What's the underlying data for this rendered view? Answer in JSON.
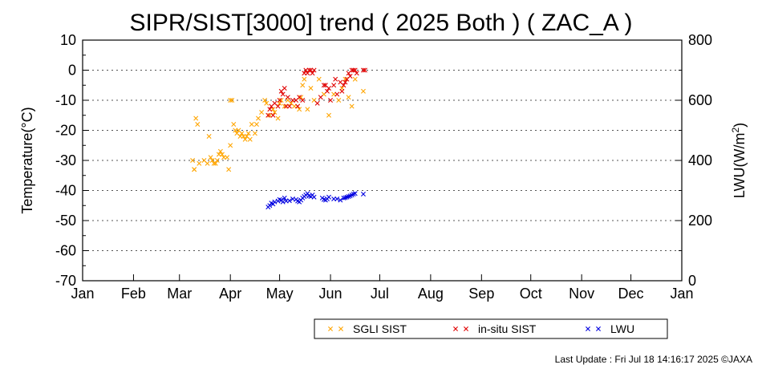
{
  "chart_data": {
    "type": "scatter",
    "title": "SIPR/SIST[3000] trend ( 2025 Both ) ( ZAC_A )",
    "ylabel": "Temperature(°C)",
    "y2label_prefix": "LWU(W/m",
    "y2label_sup": "2",
    "y2label_suffix": ")",
    "ylim": [
      -70,
      10
    ],
    "y2lim": [
      0,
      800
    ],
    "xlim_day_of_year": [
      1,
      366
    ],
    "y_ticks": [
      10,
      0,
      -10,
      -20,
      -30,
      -40,
      -50,
      -60,
      -70
    ],
    "y2_ticks": [
      800,
      600,
      400,
      200,
      0
    ],
    "x_ticks": [
      "Jan",
      "Feb",
      "Mar",
      "Apr",
      "May",
      "Jun",
      "Jul",
      "Aug",
      "Sep",
      "Oct",
      "Nov",
      "Dec",
      "Jan"
    ],
    "grid": "horizontal dotted",
    "legend_position": "bottom-right, below plot",
    "series": [
      {
        "name": "SGLI SIST",
        "color": "#FFA500",
        "axis": "left",
        "x": [
          "2025-03-09",
          "2025-03-10",
          "2025-03-10",
          "2025-03-11",
          "2025-03-12",
          "2025-03-13",
          "2025-03-16",
          "2025-03-18",
          "2025-03-19",
          "2025-03-20",
          "2025-03-21",
          "2025-03-22",
          "2025-03-23",
          "2025-03-24",
          "2025-03-25",
          "2025-03-26",
          "2025-03-27",
          "2025-03-28",
          "2025-03-30",
          "2025-03-31",
          "2025-04-01",
          "2025-04-01",
          "2025-04-02",
          "2025-04-03",
          "2025-04-04",
          "2025-04-05",
          "2025-04-06",
          "2025-04-07",
          "2025-04-08",
          "2025-04-09",
          "2025-04-10",
          "2025-04-11",
          "2025-04-12",
          "2025-04-13",
          "2025-04-14",
          "2025-04-16",
          "2025-04-17",
          "2025-04-18",
          "2025-04-20",
          "2025-04-22",
          "2025-04-23",
          "2025-04-25",
          "2025-04-27",
          "2025-04-28",
          "2025-04-30",
          "2025-05-01",
          "2025-05-02",
          "2025-05-04",
          "2025-05-06",
          "2025-05-08",
          "2025-05-10",
          "2025-05-12",
          "2025-05-13",
          "2025-05-14",
          "2025-05-15",
          "2025-05-16",
          "2025-05-18",
          "2025-05-20",
          "2025-05-22",
          "2025-05-25",
          "2025-05-28",
          "2025-05-31",
          "2025-06-03",
          "2025-06-06",
          "2025-06-08",
          "2025-06-10",
          "2025-06-12",
          "2025-06-14",
          "2025-06-16",
          "2025-06-21"
        ],
        "y": [
          -30,
          -33,
          -33,
          -16,
          -18,
          -31,
          -30,
          -31,
          -22,
          -29,
          -30,
          -31,
          -31,
          -30,
          -28,
          -27,
          -28,
          -29,
          -29,
          -33,
          -25,
          -10,
          -10,
          -18,
          -20,
          -21,
          -20,
          -22,
          -21,
          -22,
          -23,
          -22,
          -21,
          -23,
          -18,
          -21,
          -18,
          -16,
          -14,
          -10,
          -11,
          -15,
          -13,
          -14,
          -16,
          -11,
          -10,
          -12,
          -10,
          -11,
          -12,
          -12,
          -13,
          -9,
          -5,
          -3,
          -13,
          -6,
          -10,
          -3,
          -8,
          -15,
          -8,
          -10,
          -6,
          -3,
          -9,
          -12,
          -3,
          -7
        ]
      },
      {
        "name": "in-situ SIST",
        "color": "#E00000",
        "axis": "left",
        "x": [
          "2025-04-24",
          "2025-04-25",
          "2025-04-26",
          "2025-04-27",
          "2025-04-28",
          "2025-04-30",
          "2025-05-01",
          "2025-05-02",
          "2025-05-03",
          "2025-05-04",
          "2025-05-05",
          "2025-05-06",
          "2025-05-07",
          "2025-05-09",
          "2025-05-11",
          "2025-05-12",
          "2025-05-13",
          "2025-05-15",
          "2025-05-16",
          "2025-05-17",
          "2025-05-18",
          "2025-05-19",
          "2025-05-20",
          "2025-05-21",
          "2025-05-22",
          "2025-05-24",
          "2025-05-26",
          "2025-05-28",
          "2025-05-29",
          "2025-05-30",
          "2025-05-31",
          "2025-06-01",
          "2025-06-03",
          "2025-06-04",
          "2025-06-05",
          "2025-06-07",
          "2025-06-08",
          "2025-06-09",
          "2025-06-10",
          "2025-06-11",
          "2025-06-12",
          "2025-06-13",
          "2025-06-14",
          "2025-06-15",
          "2025-06-16",
          "2025-06-17",
          "2025-06-21",
          "2025-06-22"
        ],
        "y": [
          -15,
          -13,
          -12,
          -15,
          -11,
          -12,
          -10,
          -7,
          -8,
          -6,
          -12,
          -9,
          -12,
          -10,
          -10,
          -12,
          -9,
          -10,
          -1,
          0,
          -1,
          0,
          0,
          -1,
          0,
          -11,
          -9,
          -5,
          -5,
          -7,
          -6,
          -10,
          -5,
          -3,
          -8,
          -4,
          -7,
          -5,
          -4,
          -3,
          -1,
          -2,
          0,
          0,
          0,
          -1,
          0,
          0
        ]
      },
      {
        "name": "LWU",
        "color": "#0000E0",
        "axis": "right",
        "x": [
          "2025-04-24",
          "2025-04-25",
          "2025-04-26",
          "2025-04-27",
          "2025-04-28",
          "2025-04-30",
          "2025-05-01",
          "2025-05-02",
          "2025-05-03",
          "2025-05-04",
          "2025-05-05",
          "2025-05-07",
          "2025-05-09",
          "2025-05-11",
          "2025-05-12",
          "2025-05-13",
          "2025-05-14",
          "2025-05-15",
          "2025-05-16",
          "2025-05-17",
          "2025-05-18",
          "2025-05-19",
          "2025-05-20",
          "2025-05-21",
          "2025-05-22",
          "2025-05-27",
          "2025-05-28",
          "2025-05-29",
          "2025-05-30",
          "2025-05-31",
          "2025-06-03",
          "2025-06-05",
          "2025-06-07",
          "2025-06-09",
          "2025-06-10",
          "2025-06-11",
          "2025-06-12",
          "2025-06-13",
          "2025-06-14",
          "2025-06-15",
          "2025-06-16",
          "2025-06-21"
        ],
        "y": [
          245,
          250,
          258,
          255,
          262,
          265,
          270,
          268,
          262,
          275,
          265,
          266,
          272,
          270,
          265,
          262,
          268,
          275,
          280,
          285,
          290,
          282,
          280,
          285,
          278,
          275,
          270,
          268,
          272,
          278,
          272,
          272,
          268,
          275,
          276,
          278,
          280,
          282,
          285,
          288,
          290,
          288
        ]
      }
    ]
  },
  "footer": {
    "last_update": "Last Update : Fri Jul 18 14:16:17 2025  ©JAXA"
  }
}
